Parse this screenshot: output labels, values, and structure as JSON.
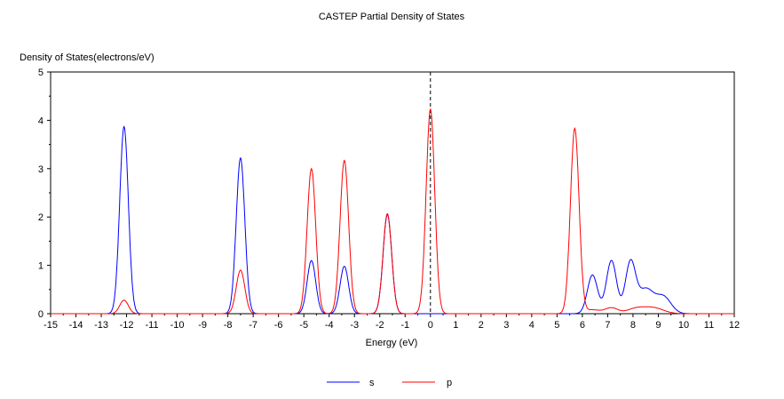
{
  "chart_data": {
    "type": "line",
    "title": "CASTEP Partial  Density of States",
    "xlabel": "Energy (eV)",
    "ylabel": "Density of States(electrons/eV)",
    "xlim": [
      -15,
      12
    ],
    "ylim": [
      0,
      5
    ],
    "xticks": [
      -15,
      -14,
      -13,
      -12,
      -11,
      -10,
      -9,
      -8,
      -7,
      -6,
      -5,
      -4,
      -3,
      -2,
      -1,
      0,
      1,
      2,
      3,
      4,
      5,
      6,
      7,
      8,
      9,
      10,
      11,
      12
    ],
    "yticks": [
      0,
      1,
      2,
      3,
      4,
      5
    ],
    "fermi_level": 0,
    "legend_placement": "bottom",
    "series": [
      {
        "name": "s",
        "color": "#0000ff",
        "peaks_center_height_sigma": [
          [
            -12.1,
            3.87,
            0.17
          ],
          [
            -7.5,
            3.22,
            0.17
          ],
          [
            -4.7,
            1.1,
            0.17
          ],
          [
            -3.4,
            0.98,
            0.17
          ],
          [
            -1.7,
            2.05,
            0.17
          ],
          [
            6.4,
            0.8,
            0.2
          ],
          [
            7.15,
            1.1,
            0.2
          ],
          [
            7.9,
            1.05,
            0.2
          ],
          [
            8.5,
            0.5,
            0.3
          ],
          [
            9.2,
            0.35,
            0.3
          ]
        ]
      },
      {
        "name": "p",
        "color": "#ff0000",
        "peaks_center_height_sigma": [
          [
            -12.1,
            0.28,
            0.17
          ],
          [
            -7.5,
            0.9,
            0.17
          ],
          [
            -4.7,
            3.0,
            0.17
          ],
          [
            -3.4,
            3.17,
            0.17
          ],
          [
            -1.7,
            2.07,
            0.17
          ],
          [
            0,
            4.23,
            0.17
          ],
          [
            5.7,
            3.83,
            0.17
          ],
          [
            6.4,
            0.08,
            0.3
          ],
          [
            7.15,
            0.12,
            0.25
          ],
          [
            8.1,
            0.1,
            0.35
          ],
          [
            8.8,
            0.12,
            0.4
          ]
        ]
      }
    ]
  }
}
